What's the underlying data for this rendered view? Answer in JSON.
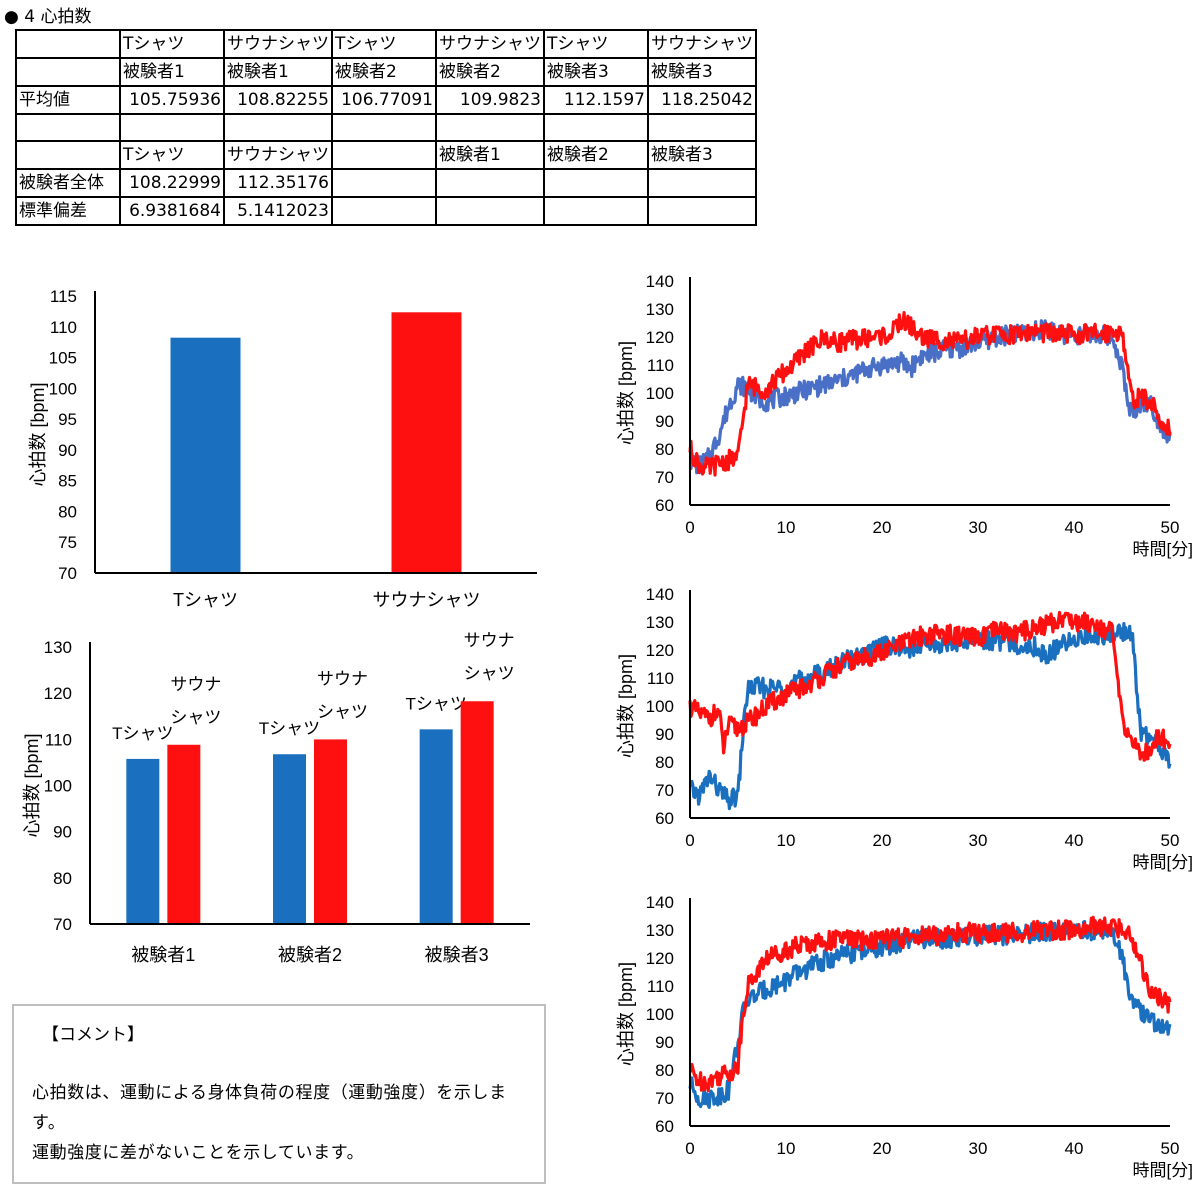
{
  "section_title": "● 4 心拍数",
  "table": {
    "rows": [
      [
        "",
        "Tシャツ",
        "サウナシャツ",
        "Tシャツ",
        "サウナシャツ",
        "Tシャツ",
        "サウナシャツ"
      ],
      [
        "",
        "被験者1",
        "被験者1",
        "被験者2",
        "被験者2",
        "被験者3",
        "被験者3"
      ],
      [
        "平均値",
        "105.75936",
        "108.82255",
        "106.77091",
        "109.9823",
        "112.1597",
        "118.25042"
      ],
      [
        "",
        "",
        "",
        "",
        "",
        "",
        ""
      ],
      [
        "",
        "Tシャツ",
        "サウナシャツ",
        "",
        "被験者1",
        "被験者2",
        "被験者3"
      ],
      [
        "被験者全体",
        "108.22999",
        "112.35176",
        "",
        "",
        "",
        ""
      ],
      [
        "標準偏差",
        "6.9381684",
        "5.1412023",
        "",
        "",
        "",
        ""
      ]
    ]
  },
  "colors": {
    "tshirt": "#1a6fbf",
    "tshirt_line_1": "#4a6fc6",
    "sauna": "#ff1010",
    "axis": "#000000",
    "comment_border": "#bfbfbf"
  },
  "comment": {
    "heading": "【コメント】",
    "lines": [
      "心拍数は、運動による身体負荷の程度（運動強度）を示します。",
      "運動強度に差がないことを示しています。"
    ]
  },
  "chart_data": [
    {
      "type": "bar",
      "title": "",
      "categories": [
        "Tシャツ",
        "サウナシャツ"
      ],
      "values": [
        108.22999,
        112.35176
      ],
      "ylabel": "心拍数 [bpm]",
      "ylim": [
        70,
        115
      ],
      "yticks": [
        70,
        75,
        80,
        85,
        90,
        95,
        100,
        105,
        110,
        115
      ],
      "grid": false,
      "bar_colors": [
        "#1a6fbf",
        "#ff1010"
      ]
    },
    {
      "type": "bar",
      "categories": [
        "被験者1",
        "被験者2",
        "被験者3"
      ],
      "series": [
        {
          "name": "Tシャツ",
          "values": [
            105.75936,
            106.77091,
            112.1597
          ]
        },
        {
          "name": "サウナシャツ",
          "values": [
            108.82255,
            109.9823,
            118.25042
          ]
        }
      ],
      "data_labels": [
        "Tシャツ",
        "サウナ",
        "シャツ"
      ],
      "ylabel": "心拍数 [bpm]",
      "ylim": [
        70,
        130
      ],
      "yticks": [
        70,
        80,
        90,
        100,
        110,
        120,
        130
      ],
      "grid": false
    },
    {
      "type": "line",
      "xlabel": "時間[分]",
      "ylabel": "心拍数 [bpm]",
      "xlim": [
        0,
        50
      ],
      "ylim": [
        60,
        140
      ],
      "xticks": [
        0,
        10,
        20,
        30,
        40,
        50
      ],
      "yticks": [
        60,
        70,
        80,
        90,
        100,
        110,
        120,
        130,
        140
      ],
      "series": [
        {
          "color": "#4a6fc6",
          "x": [
            0,
            1,
            2,
            3,
            3.5,
            4,
            5,
            6,
            7,
            8,
            10,
            12,
            14,
            16,
            18,
            20,
            22,
            23,
            24,
            26,
            28,
            30,
            32,
            34,
            36,
            37,
            38,
            40,
            42,
            44,
            45,
            45.5,
            46,
            47,
            48,
            49,
            50
          ],
          "y": [
            76,
            74,
            77,
            85,
            90,
            95,
            103,
            102,
            98,
            97,
            99,
            101,
            103,
            105,
            108,
            110,
            111,
            109,
            113,
            115,
            116,
            118,
            120,
            121,
            122,
            124,
            121,
            121,
            121,
            120,
            110,
            98,
            93,
            97,
            96,
            89,
            84
          ]
        },
        {
          "color": "#ff1010",
          "x": [
            0,
            1,
            2,
            3,
            4,
            5,
            5.5,
            6,
            7,
            8,
            9,
            10,
            11,
            12,
            13,
            14,
            15,
            17,
            19,
            21,
            22,
            23,
            24,
            26,
            28,
            30,
            32,
            34,
            36,
            38,
            40,
            42,
            44,
            45,
            45.5,
            46,
            47,
            48,
            49,
            50
          ],
          "y": [
            80,
            74,
            73,
            75,
            76,
            77,
            90,
            103,
            102,
            101,
            105,
            108,
            111,
            115,
            117,
            120,
            118,
            119,
            120,
            121,
            126,
            124,
            120,
            119,
            118,
            120,
            121,
            121,
            122,
            121,
            121,
            121,
            122,
            122,
            110,
            98,
            98,
            97,
            90,
            87
          ]
        }
      ]
    },
    {
      "type": "line",
      "xlabel": "時間[分]",
      "ylabel": "心拍数 [bpm]",
      "xlim": [
        0,
        50
      ],
      "ylim": [
        60,
        140
      ],
      "xticks": [
        0,
        10,
        20,
        30,
        40,
        50
      ],
      "yticks": [
        60,
        70,
        80,
        90,
        100,
        110,
        120,
        130,
        140
      ],
      "series": [
        {
          "color": "#1a6fbf",
          "x": [
            0,
            1,
            2,
            3,
            4,
            5,
            5.5,
            6,
            7,
            8,
            10,
            12,
            14,
            16,
            18,
            19,
            20,
            22,
            24,
            26,
            28,
            30,
            32,
            34,
            36,
            37,
            38,
            40,
            42,
            44,
            45,
            46,
            46.5,
            47,
            48,
            49,
            50
          ],
          "y": [
            70,
            68,
            75,
            70,
            66,
            68,
            90,
            106,
            107,
            106,
            107,
            110,
            112,
            116,
            118,
            120,
            123,
            120,
            121,
            122,
            123,
            124,
            123,
            122,
            121,
            118,
            120,
            124,
            125,
            126,
            127,
            126,
            108,
            90,
            88,
            85,
            80
          ]
        },
        {
          "color": "#ff1010",
          "x": [
            0,
            1,
            2,
            3,
            3.5,
            4,
            5,
            6,
            7,
            8,
            10,
            12,
            14,
            16,
            18,
            20,
            22,
            24,
            26,
            28,
            30,
            32,
            34,
            36,
            38,
            39,
            40,
            42,
            43,
            44,
            45,
            46,
            47,
            48,
            49,
            50
          ],
          "y": [
            100,
            97,
            96,
            98,
            85,
            93,
            92,
            94,
            97,
            100,
            104,
            107,
            111,
            115,
            117,
            119,
            122,
            125,
            126,
            125,
            124,
            127,
            126,
            128,
            130,
            132,
            130,
            130,
            128,
            126,
            95,
            88,
            82,
            85,
            90,
            85
          ]
        }
      ]
    },
    {
      "type": "line",
      "xlabel": "時間[分]",
      "ylabel": "心拍数 [bpm]",
      "xlim": [
        0,
        50
      ],
      "ylim": [
        60,
        140
      ],
      "xticks": [
        0,
        10,
        20,
        30,
        40,
        50
      ],
      "yticks": [
        60,
        70,
        80,
        90,
        100,
        110,
        120,
        130,
        140
      ],
      "series": [
        {
          "color": "#1a6fbf",
          "x": [
            0,
            1,
            2,
            3,
            4,
            5,
            5.5,
            6,
            7,
            8,
            10,
            12,
            14,
            16,
            18,
            20,
            22,
            24,
            26,
            28,
            30,
            32,
            34,
            36,
            38,
            40,
            42,
            43,
            44,
            45,
            46,
            47,
            48,
            49,
            50
          ],
          "y": [
            75,
            70,
            70,
            71,
            73,
            90,
            100,
            105,
            107,
            109,
            112,
            116,
            119,
            121,
            123,
            124,
            125,
            127,
            127,
            127,
            128,
            128,
            128,
            129,
            130,
            130,
            130,
            130,
            129,
            120,
            105,
            100,
            98,
            96,
            94
          ]
        },
        {
          "color": "#ff1010",
          "x": [
            0,
            1,
            2,
            3,
            4,
            5,
            5.5,
            6,
            7,
            8,
            10,
            12,
            14,
            16,
            18,
            20,
            22,
            24,
            26,
            28,
            30,
            32,
            34,
            36,
            38,
            40,
            42,
            44,
            45,
            46,
            47,
            48,
            49,
            50
          ],
          "y": [
            80,
            76,
            76,
            78,
            79,
            81,
            100,
            110,
            115,
            120,
            123,
            125,
            126,
            127,
            126,
            127,
            127,
            128,
            128,
            129,
            129,
            129,
            129,
            130,
            130,
            130,
            131,
            131,
            130,
            128,
            118,
            108,
            105,
            103
          ]
        }
      ]
    }
  ]
}
